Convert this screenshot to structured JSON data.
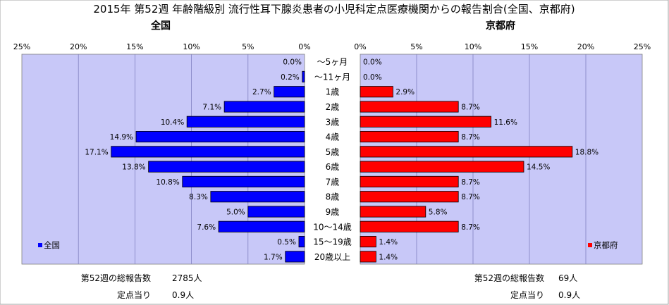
{
  "chart_data": {
    "type": "bar",
    "title": "2015年 第52週 年齢階級別 流行性耳下腺炎患者の小児科定点医療機関からの報告割合(全国、京都府)",
    "layout": "butterfly",
    "categories": [
      "～5ヶ月",
      "～11ヶ月",
      "1歳",
      "2歳",
      "3歳",
      "4歳",
      "5歳",
      "6歳",
      "7歳",
      "8歳",
      "9歳",
      "10～14歳",
      "15～19歳",
      "20歳以上"
    ],
    "xlim": [
      0,
      25
    ],
    "xticks": [
      0,
      5,
      10,
      15,
      20,
      25
    ],
    "grid": true,
    "series": [
      {
        "name": "全国",
        "panel_title": "全国",
        "side": "left",
        "color": "#0000ff",
        "values": [
          0.0,
          0.2,
          2.7,
          7.1,
          10.4,
          14.9,
          17.1,
          13.8,
          10.8,
          8.3,
          5.0,
          7.6,
          0.5,
          1.7
        ],
        "value_labels": [
          "0.0%",
          "0.2%",
          "2.7%",
          "7.1%",
          "10.4%",
          "14.9%",
          "17.1%",
          "13.8%",
          "10.8%",
          "8.3%",
          "5.0%",
          "7.6%",
          "0.5%",
          "1.7%"
        ],
        "legend_position": "bottom-left",
        "footer": {
          "total_label": "第52週の総報告数",
          "total_value": "2785人",
          "per_label": "定点当り",
          "per_value": "0.9人"
        }
      },
      {
        "name": "京都府",
        "panel_title": "京都府",
        "side": "right",
        "color": "#ff0000",
        "values": [
          0.0,
          0.0,
          2.9,
          8.7,
          11.6,
          8.7,
          18.8,
          14.5,
          8.7,
          8.7,
          5.8,
          8.7,
          1.4,
          1.4
        ],
        "value_labels": [
          "0.0%",
          "0.0%",
          "2.9%",
          "8.7%",
          "11.6%",
          "8.7%",
          "18.8%",
          "14.5%",
          "8.7%",
          "8.7%",
          "5.8%",
          "8.7%",
          "1.4%",
          "1.4%"
        ],
        "legend_position": "bottom-right",
        "footer": {
          "total_label": "第52週の総報告数",
          "total_value": "69人",
          "per_label": "定点当り",
          "per_value": "0.9人"
        }
      }
    ],
    "colors": {
      "plot_bg": "#c8c8f8",
      "grid": "#8080c0"
    }
  }
}
